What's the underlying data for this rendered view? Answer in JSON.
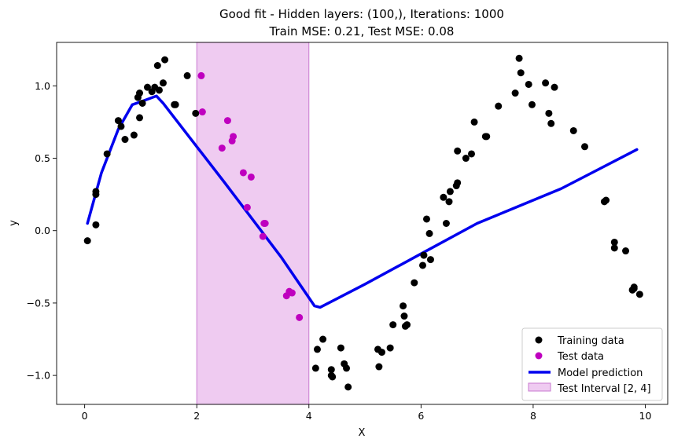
{
  "chart_data": {
    "type": "scatter",
    "title": "Good fit - Hidden layers: (100,), Iterations: 1000",
    "subtitle": "Train MSE: 0.21, Test MSE: 0.08",
    "xlabel": "X",
    "ylabel": "y",
    "xlim": [
      -0.5,
      10.4
    ],
    "ylim": [
      -1.2,
      1.3
    ],
    "x_ticks": [
      0,
      2,
      4,
      6,
      8,
      10
    ],
    "x_tick_labels": [
      "0",
      "2",
      "4",
      "6",
      "8",
      "10"
    ],
    "y_ticks": [
      -1.0,
      -0.5,
      0.0,
      0.5,
      1.0
    ],
    "y_tick_labels": [
      "−1.0",
      "−0.5",
      "0.0",
      "0.5",
      "1.0"
    ],
    "grid": false,
    "legend_position": "bottom-right",
    "series": [
      {
        "name": "Training data",
        "kind": "scatter",
        "color": "#000000",
        "points": [
          [
            0.05,
            -0.07
          ],
          [
            0.2,
            0.27
          ],
          [
            0.2,
            0.25
          ],
          [
            0.2,
            0.04
          ],
          [
            0.4,
            0.53
          ],
          [
            0.6,
            0.76
          ],
          [
            0.65,
            0.72
          ],
          [
            0.72,
            0.63
          ],
          [
            0.88,
            0.66
          ],
          [
            0.95,
            0.92
          ],
          [
            0.98,
            0.95
          ],
          [
            0.98,
            0.78
          ],
          [
            1.03,
            0.88
          ],
          [
            1.12,
            0.99
          ],
          [
            1.2,
            0.96
          ],
          [
            1.25,
            0.99
          ],
          [
            1.3,
            1.14
          ],
          [
            1.33,
            0.97
          ],
          [
            1.4,
            1.02
          ],
          [
            1.43,
            1.18
          ],
          [
            1.6,
            0.87
          ],
          [
            1.62,
            0.87
          ],
          [
            1.83,
            1.07
          ],
          [
            1.98,
            0.81
          ],
          [
            4.12,
            -0.95
          ],
          [
            4.15,
            -0.82
          ],
          [
            4.25,
            -0.75
          ],
          [
            4.4,
            -0.96
          ],
          [
            4.4,
            -1.0
          ],
          [
            4.42,
            -1.01
          ],
          [
            4.57,
            -0.81
          ],
          [
            4.63,
            -0.92
          ],
          [
            4.67,
            -0.95
          ],
          [
            4.7,
            -1.08
          ],
          [
            5.23,
            -0.82
          ],
          [
            5.25,
            -0.94
          ],
          [
            5.3,
            -0.84
          ],
          [
            5.45,
            -0.81
          ],
          [
            5.5,
            -0.65
          ],
          [
            5.68,
            -0.52
          ],
          [
            5.7,
            -0.59
          ],
          [
            5.72,
            -0.66
          ],
          [
            5.75,
            -0.65
          ],
          [
            5.88,
            -0.36
          ],
          [
            6.03,
            -0.24
          ],
          [
            6.05,
            -0.17
          ],
          [
            6.1,
            0.08
          ],
          [
            6.15,
            -0.02
          ],
          [
            6.17,
            -0.2
          ],
          [
            6.4,
            0.23
          ],
          [
            6.45,
            0.05
          ],
          [
            6.5,
            0.2
          ],
          [
            6.52,
            0.27
          ],
          [
            6.63,
            0.31
          ],
          [
            6.65,
            0.33
          ],
          [
            6.65,
            0.55
          ],
          [
            6.8,
            0.5
          ],
          [
            6.9,
            0.53
          ],
          [
            6.95,
            0.75
          ],
          [
            7.15,
            0.65
          ],
          [
            7.17,
            0.65
          ],
          [
            7.38,
            0.86
          ],
          [
            7.68,
            0.95
          ],
          [
            7.75,
            1.19
          ],
          [
            7.78,
            1.09
          ],
          [
            7.92,
            1.01
          ],
          [
            7.98,
            0.87
          ],
          [
            8.22,
            1.02
          ],
          [
            8.28,
            0.81
          ],
          [
            8.32,
            0.74
          ],
          [
            8.38,
            0.99
          ],
          [
            8.72,
            0.69
          ],
          [
            8.92,
            0.58
          ],
          [
            9.27,
            0.2
          ],
          [
            9.3,
            0.21
          ],
          [
            9.45,
            -0.08
          ],
          [
            9.45,
            -0.12
          ],
          [
            9.65,
            -0.14
          ],
          [
            9.77,
            -0.41
          ],
          [
            9.8,
            -0.4
          ],
          [
            9.8,
            -0.39
          ],
          [
            9.9,
            -0.44
          ]
        ]
      },
      {
        "name": "Test data",
        "kind": "scatter",
        "color": "#bf00bf",
        "points": [
          [
            2.08,
            1.07
          ],
          [
            2.1,
            0.82
          ],
          [
            2.45,
            0.57
          ],
          [
            2.55,
            0.76
          ],
          [
            2.63,
            0.62
          ],
          [
            2.65,
            0.65
          ],
          [
            2.83,
            0.4
          ],
          [
            2.9,
            0.16
          ],
          [
            2.97,
            0.37
          ],
          [
            3.18,
            -0.04
          ],
          [
            3.2,
            0.05
          ],
          [
            3.22,
            0.05
          ],
          [
            3.6,
            -0.45
          ],
          [
            3.65,
            -0.42
          ],
          [
            3.7,
            -0.43
          ],
          [
            3.83,
            -0.6
          ]
        ]
      },
      {
        "name": "Model prediction",
        "kind": "line",
        "color": "#0000ee",
        "points": [
          [
            0.05,
            0.05
          ],
          [
            0.3,
            0.4
          ],
          [
            0.6,
            0.7
          ],
          [
            0.85,
            0.87
          ],
          [
            1.0,
            0.89
          ],
          [
            1.28,
            0.93
          ],
          [
            1.4,
            0.88
          ],
          [
            2.5,
            0.33
          ],
          [
            3.5,
            -0.18
          ],
          [
            4.1,
            -0.52
          ],
          [
            4.2,
            -0.53
          ],
          [
            5.0,
            -0.37
          ],
          [
            6.0,
            -0.16
          ],
          [
            7.0,
            0.05
          ],
          [
            7.5,
            0.13
          ],
          [
            8.5,
            0.29
          ],
          [
            9.85,
            0.56
          ]
        ]
      }
    ],
    "shaded_interval": {
      "name": "Test Interval [2, 4]",
      "x0": 2,
      "x1": 4,
      "color": "#e2a0e6"
    }
  }
}
